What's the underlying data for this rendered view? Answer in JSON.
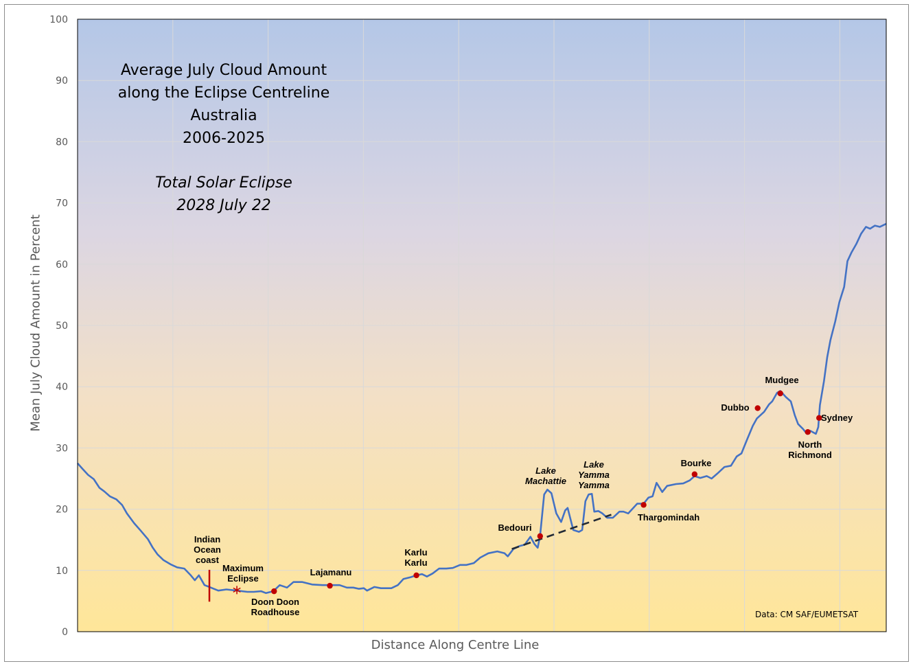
{
  "chart_data": {
    "type": "line",
    "title": "Average July Cloud Amount\nalong the Eclipse Centreline\nAustralia\n2006-2025",
    "subtitle": "Total Solar Eclipse\n2028 July 22",
    "xlabel": "Distance Along Centre Line",
    "ylabel": "Mean July Cloud Amount in Percent",
    "credit": "Data: CM SAF/EUMETSAT",
    "xlim": [
      0,
      100
    ],
    "ylim": [
      0,
      100
    ],
    "yticks": [
      0,
      10,
      20,
      30,
      40,
      50,
      60,
      70,
      80,
      90,
      100
    ],
    "grid": true,
    "colors": {
      "line": "#4472c4",
      "marker": "#c00000",
      "bg_top": "#b4c7e7",
      "bg_bottom": "#ffe699",
      "trend": "#222a35"
    },
    "series": [
      {
        "x": [
          0,
          0.6,
          1.3,
          2.0,
          2.7,
          3.3,
          4.0,
          4.8,
          5.5,
          6.1,
          7.0,
          7.8,
          8.7,
          9.3,
          9.9,
          10.6,
          11.5,
          12.3,
          13.2,
          14.0,
          14.5,
          15.0,
          15.7,
          16.3,
          17.4,
          18.4,
          19.7,
          21.0,
          21.8,
          22.7,
          23.3,
          24.2,
          25.0,
          25.9,
          26.7,
          27.8,
          29.0,
          30.3,
          31.2,
          32.4,
          33.3,
          34.1,
          34.8,
          35.4,
          35.8,
          36.7,
          37.5,
          38.8,
          39.6,
          40.3,
          41.2,
          41.9,
          42.6,
          43.2,
          43.9,
          44.7,
          45.6,
          46.4,
          47.3,
          48.1,
          49.0,
          49.8,
          50.8,
          51.9,
          52.8,
          53.2,
          53.9,
          54.7,
          55.3,
          56.0,
          56.5,
          56.9,
          57.2,
          57.7,
          58.1,
          58.6,
          59.2,
          59.8,
          60.3,
          60.6,
          61.3,
          62.0,
          62.4,
          62.8,
          63.2,
          63.6,
          63.9,
          64.4,
          64.9,
          65.5,
          66.2,
          67.0,
          67.5,
          68.1,
          69.2,
          70.0,
          70.6,
          71.1,
          71.6,
          72.3,
          72.9,
          74.0,
          74.9,
          75.7,
          76.3,
          77.0,
          77.8,
          78.4,
          79.1,
          80.0,
          80.8,
          81.5,
          82.1,
          82.8,
          83.5,
          84.0,
          84.9,
          85.5,
          85.9,
          86.5,
          86.9,
          87.6,
          88.2,
          88.7,
          89.1,
          89.7,
          90.2,
          90.6,
          91.3,
          91.6,
          91.8,
          92.3,
          92.7,
          93.1,
          93.7,
          94.2,
          94.8,
          95.2,
          95.7,
          96.3,
          96.9,
          97.5,
          98.0,
          98.6,
          99.2,
          100
        ],
        "y": [
          27.5,
          26.6,
          25.6,
          24.9,
          23.5,
          22.9,
          22.1,
          21.6,
          20.7,
          19.3,
          17.7,
          16.5,
          15.1,
          13.7,
          12.6,
          11.7,
          11.0,
          10.5,
          10.3,
          9.2,
          8.4,
          9.2,
          7.6,
          7.3,
          6.7,
          6.9,
          6.7,
          6.5,
          6.5,
          6.6,
          6.3,
          6.6,
          7.6,
          7.2,
          8.1,
          8.1,
          7.7,
          7.6,
          7.6,
          7.6,
          7.2,
          7.2,
          7.0,
          7.1,
          6.7,
          7.3,
          7.1,
          7.1,
          7.6,
          8.6,
          8.9,
          9.2,
          9.4,
          9.0,
          9.5,
          10.3,
          10.3,
          10.4,
          10.9,
          10.9,
          11.2,
          12.1,
          12.8,
          13.1,
          12.8,
          12.3,
          13.5,
          14.0,
          14.2,
          15.5,
          14.3,
          13.7,
          15.7,
          22.4,
          23.2,
          22.6,
          19.3,
          17.9,
          19.8,
          20.2,
          16.6,
          16.3,
          16.6,
          21.3,
          22.4,
          22.5,
          19.6,
          19.7,
          19.3,
          18.6,
          18.6,
          19.6,
          19.6,
          19.3,
          20.9,
          20.9,
          21.9,
          22.1,
          24.3,
          22.8,
          23.8,
          24.1,
          24.2,
          24.7,
          25.4,
          25.1,
          25.4,
          25.0,
          25.8,
          26.9,
          27.1,
          28.6,
          29.1,
          31.4,
          33.6,
          34.8,
          35.9,
          37.1,
          37.6,
          39.0,
          39.3,
          38.3,
          37.6,
          35.3,
          33.9,
          33.1,
          32.3,
          32.8,
          32.3,
          33.4,
          37.0,
          40.9,
          44.8,
          47.6,
          50.7,
          53.8,
          56.3,
          60.5,
          61.9,
          63.3,
          65.0,
          66.1,
          65.8,
          66.3,
          66.1,
          66.6
        ]
      }
    ],
    "locations": [
      {
        "name": "Doon Doon\nRoadhouse",
        "x": 24.3,
        "y": 6.6,
        "italic": false
      },
      {
        "name": "Lajamanu",
        "x": 31.2,
        "y": 7.5,
        "italic": false
      },
      {
        "name": "Karlu\nKarlu",
        "x": 41.9,
        "y": 9.2,
        "italic": false
      },
      {
        "name": "Bedouri",
        "x": 57.2,
        "y": 15.6,
        "italic": false
      },
      {
        "name": "Thargomindah",
        "x": 70.0,
        "y": 20.7,
        "italic": false
      },
      {
        "name": "Bourke",
        "x": 76.3,
        "y": 25.7,
        "italic": false
      },
      {
        "name": "Dubbo",
        "x": 84.1,
        "y": 36.5,
        "italic": false
      },
      {
        "name": "Mudgee",
        "x": 86.9,
        "y": 38.9,
        "italic": false
      },
      {
        "name": "North\nRichmond",
        "x": 90.3,
        "y": 32.6,
        "italic": false
      },
      {
        "name": "Sydney",
        "x": 91.7,
        "y": 34.9,
        "italic": false
      }
    ],
    "annotations": [
      {
        "text": "Indian\nOcean\ncoast",
        "type": "vertical-bar",
        "x": 16.3,
        "y_from": 4.9,
        "y_to": 10.1
      },
      {
        "text": "Maximum\nEclipse",
        "type": "star",
        "x": 19.7,
        "y": 6.8
      },
      {
        "text": "Lake\nMachattie",
        "type": "label",
        "italic": true
      },
      {
        "text": "Lake\nYamma\nYamma",
        "type": "label",
        "italic": true
      }
    ],
    "trend_line": {
      "style": "dashed",
      "x": [
        53.7,
        66.0
      ],
      "y": [
        13.5,
        19.1
      ]
    }
  }
}
